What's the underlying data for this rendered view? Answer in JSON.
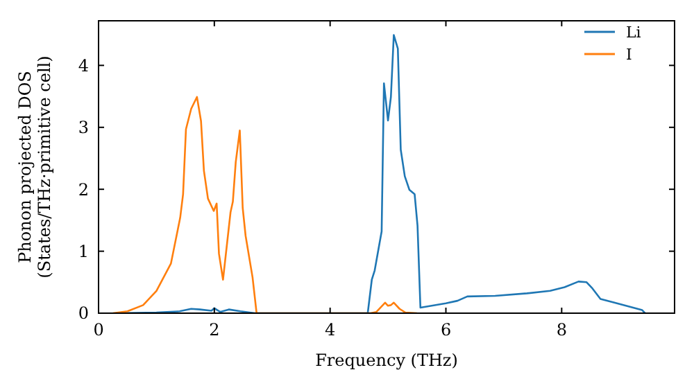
{
  "chart_data": {
    "type": "line",
    "xlabel": "Frequency (THz)",
    "ylabel": "Phonon projected DOS\n(States/THz·primitive cell)",
    "xlim": [
      0,
      9.95
    ],
    "ylim": [
      0,
      4.72
    ],
    "xticks": [
      0,
      2,
      4,
      6,
      8
    ],
    "yticks": [
      0,
      1,
      2,
      3,
      4
    ],
    "legend": "top right",
    "grid": false,
    "series": [
      {
        "name": "Li",
        "color": "#1f77b4",
        "x": [
          0.3,
          1.0,
          1.4,
          1.6,
          1.75,
          1.95,
          2.0,
          2.1,
          2.25,
          2.45,
          2.7,
          4.6,
          4.65,
          4.72,
          4.77,
          4.89,
          4.93,
          5.0,
          5.05,
          5.1,
          5.17,
          5.22,
          5.29,
          5.37,
          5.46,
          5.51,
          5.56,
          6.0,
          6.2,
          6.37,
          6.85,
          7.4,
          7.8,
          8.05,
          8.29,
          8.43,
          8.53,
          8.67,
          8.91,
          9.39,
          9.44
        ],
        "values": [
          0,
          0.01,
          0.03,
          0.07,
          0.06,
          0.04,
          0.08,
          0.02,
          0.06,
          0.03,
          0,
          0,
          0,
          0.54,
          0.69,
          1.32,
          3.71,
          3.11,
          3.49,
          4.49,
          4.27,
          2.64,
          2.21,
          1.99,
          1.92,
          1.41,
          0.09,
          0.16,
          0.2,
          0.27,
          0.28,
          0.32,
          0.36,
          0.42,
          0.51,
          0.5,
          0.4,
          0.23,
          0.17,
          0.05,
          0
        ]
      },
      {
        "name": "I",
        "color": "#ff7f0e",
        "x": [
          0.25,
          0.5,
          0.77,
          1.0,
          1.25,
          1.41,
          1.46,
          1.51,
          1.6,
          1.7,
          1.77,
          1.82,
          1.89,
          1.99,
          2.04,
          2.08,
          2.15,
          2.28,
          2.32,
          2.37,
          2.44,
          2.49,
          2.54,
          2.66,
          2.73,
          4.7,
          4.8,
          4.95,
          5.0,
          5.05,
          5.1,
          5.2,
          5.3,
          5.5
        ],
        "values": [
          0,
          0.03,
          0.13,
          0.36,
          0.8,
          1.54,
          1.92,
          2.97,
          3.3,
          3.49,
          3.1,
          2.3,
          1.85,
          1.65,
          1.77,
          0.96,
          0.54,
          1.63,
          1.8,
          2.44,
          2.95,
          1.7,
          1.25,
          0.58,
          0,
          0,
          0.02,
          0.17,
          0.12,
          0.13,
          0.17,
          0.07,
          0.01,
          0
        ]
      }
    ]
  }
}
